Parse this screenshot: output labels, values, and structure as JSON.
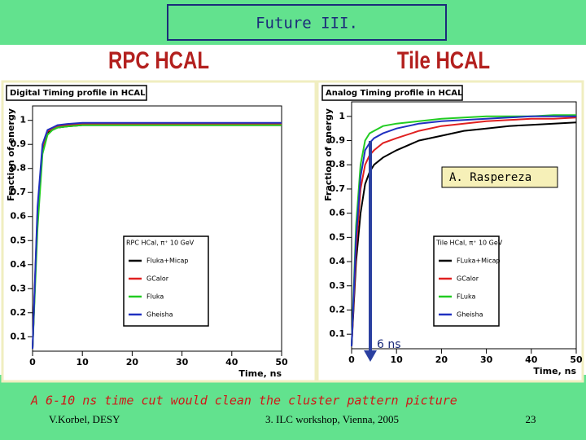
{
  "slide": {
    "title": "Future III.",
    "left_heading": "RPC HCAL",
    "right_heading": "Tile HCAL",
    "conclusion": "A 6-10 ns time cut would clean the cluster pattern picture",
    "footer": {
      "author": "V.Korbel, DESY",
      "event": "3. ILC workshop, Vienna, 2005",
      "page": "23"
    }
  },
  "chart_data": [
    {
      "type": "line",
      "title": "Digital Timing profile in HCAL",
      "legend_title": "RPC HCal, π⁺ 10 GeV",
      "x_label": "Time, ns",
      "y_label": "Fraction of energy",
      "x": [
        0,
        1,
        2,
        3,
        4,
        5,
        7,
        10,
        15,
        20,
        25,
        30,
        35,
        40,
        45,
        50
      ],
      "series": [
        {
          "name": "Fluka+Micap",
          "color": "#000000",
          "values": [
            0.05,
            0.6,
            0.88,
            0.95,
            0.96,
            0.97,
            0.975,
            0.98,
            0.98,
            0.98,
            0.98,
            0.98,
            0.98,
            0.98,
            0.98,
            0.98
          ]
        },
        {
          "name": "GCalor",
          "color": "#e02020",
          "values": [
            0.05,
            0.62,
            0.89,
            0.955,
            0.965,
            0.975,
            0.98,
            0.985,
            0.985,
            0.985,
            0.985,
            0.985,
            0.985,
            0.985,
            0.985,
            0.985
          ]
        },
        {
          "name": "Fluka",
          "color": "#22cc22",
          "values": [
            0.05,
            0.55,
            0.86,
            0.94,
            0.96,
            0.97,
            0.975,
            0.98,
            0.98,
            0.98,
            0.98,
            0.98,
            0.98,
            0.98,
            0.98,
            0.98
          ]
        },
        {
          "name": "Gheisha",
          "color": "#2030c0",
          "values": [
            0.05,
            0.64,
            0.9,
            0.96,
            0.97,
            0.98,
            0.985,
            0.99,
            0.99,
            0.99,
            0.99,
            0.99,
            0.99,
            0.99,
            0.99,
            0.99
          ]
        }
      ],
      "xlim": [
        0,
        50
      ],
      "ylim": [
        0.04,
        1.06
      ],
      "xticks": [
        0,
        10,
        20,
        30,
        40,
        50
      ],
      "yticks": [
        0.1,
        0.2,
        0.3,
        0.4,
        0.5,
        0.6,
        0.7,
        0.8,
        0.9,
        1
      ]
    },
    {
      "type": "line",
      "title": "Analog Timing profile in HCAL",
      "legend_title": "Tile HCal, π⁺ 10 GeV",
      "x_label": "Time, ns",
      "y_label": "Fraction of energy",
      "annotations": [
        "A. Raspereza",
        "6 ns"
      ],
      "x": [
        0,
        1,
        2,
        3,
        4,
        5,
        7,
        10,
        15,
        20,
        25,
        30,
        35,
        40,
        45,
        50
      ],
      "series": [
        {
          "name": "FLuka+Micap",
          "color": "#000000",
          "values": [
            0.05,
            0.4,
            0.6,
            0.72,
            0.77,
            0.8,
            0.83,
            0.86,
            0.9,
            0.92,
            0.94,
            0.95,
            0.96,
            0.965,
            0.97,
            0.975
          ]
        },
        {
          "name": "GCalor",
          "color": "#e02020",
          "values": [
            0.05,
            0.45,
            0.7,
            0.8,
            0.84,
            0.86,
            0.89,
            0.91,
            0.94,
            0.96,
            0.97,
            0.98,
            0.985,
            0.99,
            0.99,
            0.995
          ]
        },
        {
          "name": "FLuka",
          "color": "#22cc22",
          "values": [
            0.05,
            0.55,
            0.8,
            0.9,
            0.93,
            0.94,
            0.96,
            0.97,
            0.98,
            0.99,
            0.995,
            1.0,
            1.0,
            1.0,
            1.005,
            1.005
          ]
        },
        {
          "name": "Gheisha",
          "color": "#2030c0",
          "values": [
            0.05,
            0.5,
            0.75,
            0.86,
            0.89,
            0.91,
            0.93,
            0.95,
            0.97,
            0.98,
            0.985,
            0.99,
            0.995,
            1.0,
            1.0,
            1.0
          ]
        }
      ],
      "xlim": [
        0,
        50
      ],
      "ylim": [
        0.04,
        1.06
      ],
      "xticks": [
        0,
        10,
        20,
        30,
        40,
        50
      ],
      "yticks": [
        0.1,
        0.2,
        0.3,
        0.4,
        0.5,
        0.6,
        0.7,
        0.8,
        0.9,
        1
      ]
    }
  ]
}
